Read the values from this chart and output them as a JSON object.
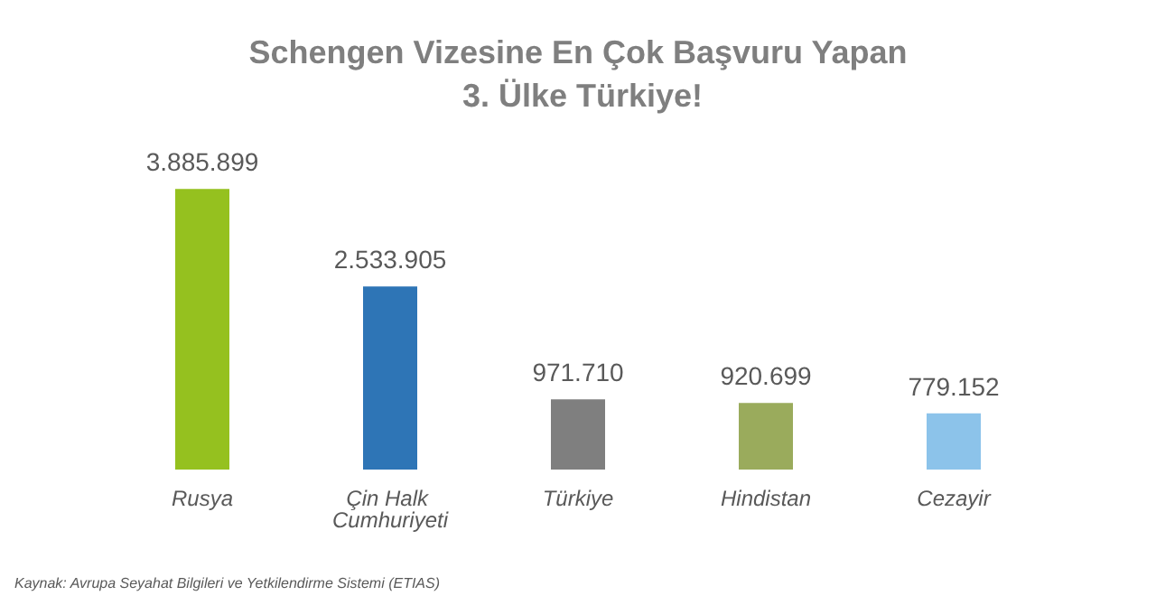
{
  "chart_data": {
    "type": "bar",
    "title": "Schengen Vizesine En Çok Başvuru Yapan 3. Ülke Türkiye!",
    "categories": [
      "Rusya",
      "Çin Halk Cumhuriyeti",
      "Türkiye",
      "Hindistan",
      "Cezayir"
    ],
    "values": [
      3885899,
      2533905,
      971710,
      920699,
      779152
    ],
    "colors": [
      "#95c11f",
      "#2e75b6",
      "#7f7f7f",
      "#9aab5c",
      "#8cc3ea"
    ],
    "annotations": [
      "Kaynak: Avrupa Seyahat Bilgileri ve Yetkilendirme Sistemi (ETIAS)"
    ],
    "value_labels": [
      "3.885.899",
      "2.533.905",
      "971.710",
      "920.699",
      "779.152"
    ]
  }
}
